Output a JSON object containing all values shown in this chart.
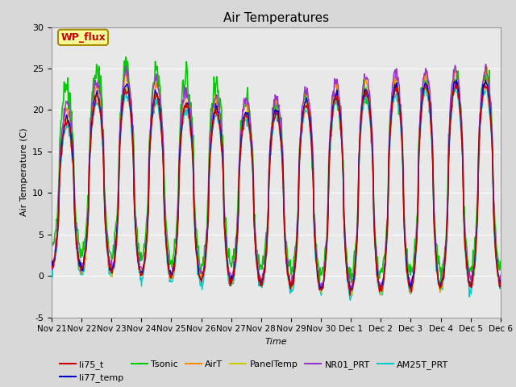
{
  "title": "Air Temperatures",
  "xlabel": "Time",
  "ylabel": "Air Temperature (C)",
  "ylim": [
    -5,
    30
  ],
  "n_days": 15,
  "xtick_labels": [
    "Nov 21",
    "Nov 22",
    "Nov 23",
    "Nov 24",
    "Nov 25",
    "Nov 26",
    "Nov 27",
    "Nov 28",
    "Nov 29",
    "Nov 30",
    "Dec 1",
    "Dec 2",
    "Dec 3",
    "Dec 4",
    "Dec 5",
    "Dec 6"
  ],
  "ytick_values": [
    -5,
    0,
    5,
    10,
    15,
    20,
    25,
    30
  ],
  "series": {
    "li75_t": {
      "color": "#cc0000",
      "lw": 1.0
    },
    "li77_temp": {
      "color": "#0000cc",
      "lw": 1.0
    },
    "Tsonic": {
      "color": "#00cc00",
      "lw": 1.2
    },
    "AirT": {
      "color": "#ff8800",
      "lw": 1.0
    },
    "PanelTemp": {
      "color": "#cccc00",
      "lw": 1.0
    },
    "NR01_PRT": {
      "color": "#9933cc",
      "lw": 1.0
    },
    "AM25T_PRT": {
      "color": "#00cccc",
      "lw": 1.0
    }
  },
  "annotation_text": "WP_flux",
  "annotation_color": "#cc0000",
  "annotation_bg": "#ffff99",
  "annotation_border": "#aa8800",
  "fig_facecolor": "#d8d8d8",
  "ax_facecolor": "#e8e8e8",
  "grid_color": "#ffffff",
  "legend_ncol_row1": 6,
  "legend_labels_row1": [
    "li75_t",
    "li77_temp",
    "Tsonic",
    "AirT",
    "PanelTemp",
    "NR01_PRT"
  ],
  "legend_labels_row2": [
    "AM25T_PRT"
  ]
}
